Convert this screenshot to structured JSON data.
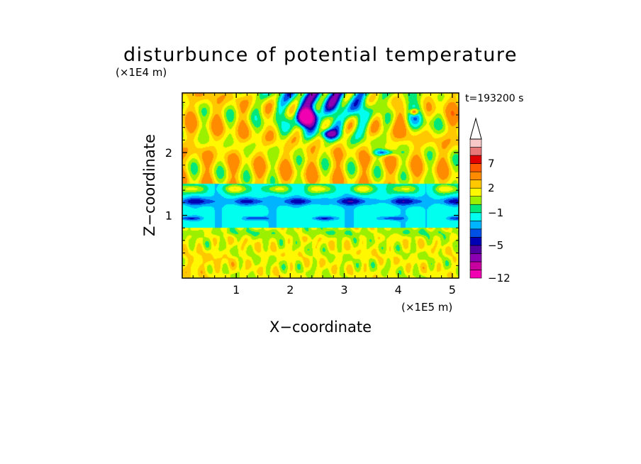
{
  "chart_data": {
    "type": "heatmap",
    "title": "disturbunce of potential temperature",
    "time_label": "t=193200 s",
    "xlabel": "X−coordinate",
    "ylabel": "Z−coordinate",
    "x_unit": "(×1E5 m)",
    "y_unit": "(×1E4 m)",
    "xlim": [
      0,
      5.12
    ],
    "ylim": [
      0,
      2.95
    ],
    "x_ticks": [
      1,
      2,
      3,
      4,
      5
    ],
    "y_ticks": [
      1,
      2
    ],
    "x_tick_labels": [
      "1",
      "2",
      "3",
      "4",
      "5"
    ],
    "y_tick_labels": [
      "1",
      "2"
    ],
    "colorbar": {
      "tick_labels": [
        "7",
        "2",
        "−1",
        "−5",
        "−12"
      ],
      "tick_values": [
        7,
        2,
        -1,
        -5,
        -12
      ],
      "levels": [
        -12,
        -10,
        -8,
        -6,
        -5,
        -4,
        -3,
        -2,
        -1,
        0,
        1,
        2,
        3,
        5,
        7,
        9,
        11
      ],
      "colors": [
        "#f000b0",
        "#c800a0",
        "#8c00b4",
        "#5000a0",
        "#0000b4",
        "#0050e6",
        "#00b4ff",
        "#00ffee",
        "#00e87a",
        "#9bf000",
        "#fff800",
        "#ffc800",
        "#ff8c00",
        "#ff5a00",
        "#e00000",
        "#e87878",
        "#f8c8c8"
      ]
    },
    "field_features": {
      "upper_layer_z": [
        1.5,
        2.95
      ],
      "cold_band_z": [
        0.8,
        1.35
      ],
      "lower_layer_z": [
        0.0,
        0.8
      ],
      "min_cell": {
        "x": 2.3,
        "z": 2.57,
        "value": -12
      },
      "max_cell": {
        "x": 4.3,
        "z": 2.65,
        "value": 9
      }
    }
  }
}
